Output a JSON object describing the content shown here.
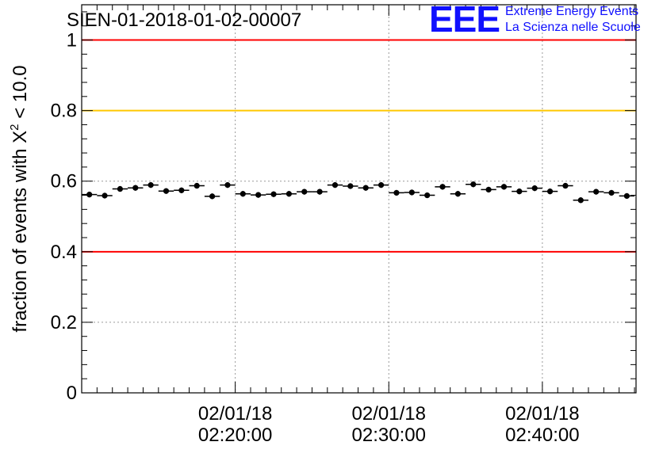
{
  "title": "SIEN-01-2018-01-02-00007",
  "logo": {
    "mark": "EEE",
    "line1": "Extreme Energy Events",
    "line2": "La Scienza nelle Scuole",
    "color": "#1010ff"
  },
  "chart_data": {
    "type": "scatter",
    "title": "SIEN-01-2018-01-02-00007",
    "xlabel": "",
    "ylabel_prefix": "fraction of events with ",
    "ylabel_symbol": "X",
    "ylabel_exponent": "2",
    "ylabel_suffix": " < 10.0",
    "x_unit": "minutes after 02:00:00 on 02/01/18",
    "xlim": [
      10.0,
      46.1
    ],
    "ylim": [
      0,
      1.1
    ],
    "grid": true,
    "yticks": [
      {
        "value": 0,
        "label": "0"
      },
      {
        "value": 0.2,
        "label": "0.2"
      },
      {
        "value": 0.4,
        "label": "0.4"
      },
      {
        "value": 0.6,
        "label": "0.6"
      },
      {
        "value": 0.8,
        "label": "0.8"
      },
      {
        "value": 1,
        "label": "1"
      }
    ],
    "xticks": [
      {
        "value": 20,
        "date": "02/01/18",
        "time": "02:20:00"
      },
      {
        "value": 30,
        "date": "02/01/18",
        "time": "02:30:00"
      },
      {
        "value": 40,
        "date": "02/01/18",
        "time": "02:40:00"
      }
    ],
    "reference_lines": [
      {
        "name": "upper-limit",
        "y": 1.0,
        "color": "#ff0000"
      },
      {
        "name": "warning-level",
        "y": 0.8,
        "color": "#ffc800"
      },
      {
        "name": "lower-limit",
        "y": 0.4,
        "color": "#ff0000"
      }
    ],
    "series": [
      {
        "name": "fraction",
        "marker_color": "#000000",
        "x_half_width": 0.5,
        "y_error": 0.008,
        "x": [
          10.5,
          11.5,
          12.5,
          13.5,
          14.5,
          15.5,
          16.5,
          17.5,
          18.5,
          19.5,
          20.5,
          21.5,
          22.5,
          23.5,
          24.5,
          25.5,
          26.5,
          27.5,
          28.5,
          29.5,
          30.5,
          31.5,
          32.5,
          33.5,
          34.5,
          35.5,
          36.5,
          37.5,
          38.5,
          39.5,
          40.5,
          41.5,
          42.5,
          43.5,
          44.5,
          45.5
        ],
        "y": [
          0.562,
          0.559,
          0.578,
          0.581,
          0.589,
          0.572,
          0.574,
          0.587,
          0.557,
          0.589,
          0.564,
          0.561,
          0.563,
          0.564,
          0.57,
          0.57,
          0.589,
          0.586,
          0.581,
          0.589,
          0.567,
          0.568,
          0.56,
          0.584,
          0.564,
          0.591,
          0.576,
          0.584,
          0.571,
          0.58,
          0.571,
          0.587,
          0.546,
          0.57,
          0.567,
          0.558
        ]
      }
    ]
  }
}
